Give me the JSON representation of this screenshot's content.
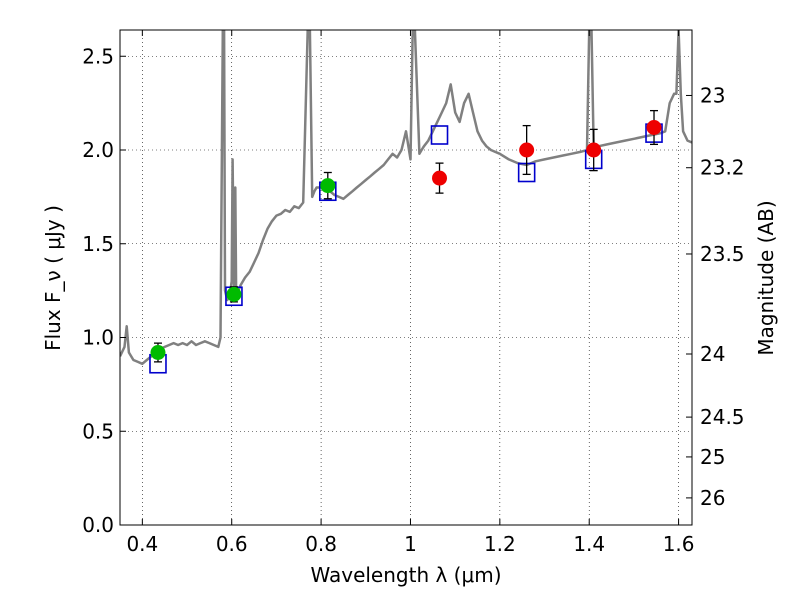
{
  "chart_data": {
    "type": "scatter",
    "xlabel": "Wavelength  λ (μm)",
    "ylabel": "Flux  F_ν  ( μJy )",
    "y2label": "Magnitude (AB)",
    "xlim": [
      0.35,
      1.63
    ],
    "ylim": [
      0.0,
      2.64
    ],
    "grid": true,
    "x_ticks": [
      0.4,
      0.6,
      0.8,
      1.0,
      1.2,
      1.4,
      1.6
    ],
    "x_tick_labels": [
      "0.4",
      "0.6",
      "0.8",
      "1",
      "1.2",
      "1.4",
      "1.6"
    ],
    "y_ticks": [
      0.0,
      0.5,
      1.0,
      1.5,
      2.0,
      2.5
    ],
    "y_tick_labels": [
      "0.0",
      "0.5",
      "1.0",
      "1.5",
      "2.0",
      "2.5"
    ],
    "y2_ticks": [
      {
        "mag": 23,
        "label": "23"
      },
      {
        "mag": 23.2,
        "label": "23.2"
      },
      {
        "mag": 23.5,
        "label": "23.5"
      },
      {
        "mag": 24,
        "label": "24"
      },
      {
        "mag": 24.5,
        "label": "24.5"
      },
      {
        "mag": 25,
        "label": "25"
      },
      {
        "mag": 26,
        "label": "26"
      }
    ],
    "colors": {
      "spectrum": "#808080",
      "green": "#00bb00",
      "red": "#ee0000",
      "model": "#0000cc",
      "errorbar": "#000000"
    },
    "series": [
      {
        "name": "spectrum",
        "kind": "line",
        "x": [
          0.35,
          0.36,
          0.365,
          0.37,
          0.38,
          0.39,
          0.4,
          0.41,
          0.42,
          0.43,
          0.44,
          0.45,
          0.46,
          0.47,
          0.48,
          0.49,
          0.5,
          0.51,
          0.52,
          0.53,
          0.54,
          0.55,
          0.56,
          0.57,
          0.575,
          0.58,
          0.583,
          0.585,
          0.59,
          0.595,
          0.6,
          0.602,
          0.605,
          0.608,
          0.61,
          0.615,
          0.62,
          0.63,
          0.64,
          0.65,
          0.66,
          0.67,
          0.68,
          0.69,
          0.7,
          0.71,
          0.72,
          0.73,
          0.74,
          0.75,
          0.76,
          0.77,
          0.775,
          0.78,
          0.785,
          0.79,
          0.8,
          0.81,
          0.82,
          0.83,
          0.84,
          0.85,
          0.86,
          0.87,
          0.88,
          0.89,
          0.9,
          0.91,
          0.92,
          0.93,
          0.94,
          0.95,
          0.96,
          0.97,
          0.98,
          0.99,
          1.0,
          1.005,
          1.01,
          1.02,
          1.025,
          1.03,
          1.04,
          1.05,
          1.06,
          1.07,
          1.08,
          1.09,
          1.1,
          1.11,
          1.12,
          1.13,
          1.14,
          1.15,
          1.16,
          1.17,
          1.18,
          1.2,
          1.22,
          1.24,
          1.26,
          1.28,
          1.3,
          1.32,
          1.34,
          1.36,
          1.38,
          1.395,
          1.4,
          1.405,
          1.41,
          1.42,
          1.44,
          1.46,
          1.48,
          1.5,
          1.52,
          1.54,
          1.56,
          1.57,
          1.58,
          1.59,
          1.595,
          1.6,
          1.605,
          1.61,
          1.62,
          1.63
        ],
        "y": [
          0.9,
          0.95,
          1.06,
          0.92,
          0.88,
          0.87,
          0.86,
          0.88,
          0.9,
          0.93,
          0.94,
          0.95,
          0.96,
          0.97,
          0.96,
          0.97,
          0.96,
          0.98,
          0.96,
          0.97,
          0.98,
          0.97,
          0.96,
          0.95,
          1.0,
          2.64,
          2.64,
          1.25,
          1.2,
          1.22,
          1.3,
          1.95,
          1.25,
          1.8,
          1.2,
          1.25,
          1.28,
          1.32,
          1.35,
          1.4,
          1.45,
          1.52,
          1.58,
          1.62,
          1.65,
          1.66,
          1.68,
          1.67,
          1.7,
          1.69,
          1.72,
          2.64,
          2.64,
          1.75,
          1.78,
          1.8,
          1.8,
          1.82,
          1.78,
          1.76,
          1.75,
          1.74,
          1.76,
          1.78,
          1.8,
          1.82,
          1.84,
          1.86,
          1.88,
          1.9,
          1.92,
          1.95,
          1.98,
          1.96,
          2.0,
          2.1,
          1.95,
          2.64,
          2.64,
          1.98,
          2.0,
          2.02,
          2.05,
          2.1,
          2.15,
          2.2,
          2.25,
          2.35,
          2.2,
          2.15,
          2.25,
          2.3,
          2.2,
          2.1,
          2.05,
          2.02,
          2.0,
          1.98,
          1.95,
          1.93,
          1.92,
          1.94,
          1.95,
          1.96,
          1.97,
          1.98,
          1.99,
          2.0,
          2.64,
          2.64,
          2.0,
          2.02,
          2.03,
          2.04,
          2.05,
          2.06,
          2.07,
          2.08,
          2.09,
          2.1,
          2.25,
          2.3,
          2.3,
          2.64,
          2.3,
          2.1,
          2.05,
          2.04
        ]
      },
      {
        "name": "green points",
        "kind": "errorbar",
        "x": [
          0.435,
          0.605,
          0.815
        ],
        "y": [
          0.92,
          1.23,
          1.81
        ],
        "yerr": [
          0.05,
          0.04,
          0.07
        ]
      },
      {
        "name": "red points",
        "kind": "errorbar",
        "x": [
          1.065,
          1.26,
          1.41,
          1.545
        ],
        "y": [
          1.85,
          2.0,
          2.0,
          2.12
        ],
        "yerr": [
          0.08,
          0.13,
          0.11,
          0.09
        ]
      },
      {
        "name": "model squares",
        "kind": "marker",
        "x": [
          0.435,
          0.605,
          0.815,
          1.065,
          1.26,
          1.41,
          1.545
        ],
        "y": [
          0.86,
          1.22,
          1.78,
          2.08,
          1.88,
          1.95,
          2.09
        ]
      }
    ]
  }
}
